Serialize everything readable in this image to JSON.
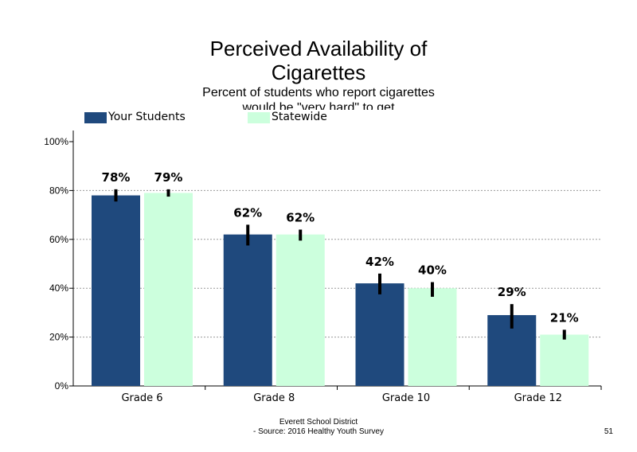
{
  "page": {
    "title_line1": "Perceived Availability of",
    "title_line2": "Cigarettes",
    "subtitle_line1": "Percent of students who report cigarettes",
    "subtitle_line2": "would be \"very hard\" to get",
    "footer_line1": "Everett School District",
    "footer_line2": "- Source: 2016 Healthy  Youth Survey",
    "page_number": "51"
  },
  "colors": {
    "your_students": "#1f497d",
    "statewide": "#ccffdd",
    "error_bar": "#000000",
    "grid": "#999999"
  },
  "chart_data": {
    "type": "bar",
    "categories": [
      "Grade 6",
      "Grade 8",
      "Grade 10",
      "Grade 12"
    ],
    "series": [
      {
        "name": "Your Students",
        "values": [
          78,
          62,
          42,
          29
        ],
        "labels": [
          "78%",
          "62%",
          "42%",
          "29%"
        ],
        "error": [
          [
            75.5,
            80.5
          ],
          [
            57.5,
            66
          ],
          [
            37.5,
            46
          ],
          [
            23.5,
            33.5
          ]
        ]
      },
      {
        "name": "Statewide",
        "values": [
          79,
          62,
          40,
          21
        ],
        "labels": [
          "79%",
          "62%",
          "40%",
          "21%"
        ],
        "error": [
          [
            77.5,
            80.5
          ],
          [
            59.5,
            64
          ],
          [
            36.5,
            42.5
          ],
          [
            19,
            23
          ]
        ]
      }
    ],
    "yticks": [
      "0%",
      "20%",
      "40%",
      "60%",
      "80%",
      "100%"
    ],
    "ylim": [
      0,
      100
    ],
    "grid": true,
    "legend_position": "top"
  }
}
